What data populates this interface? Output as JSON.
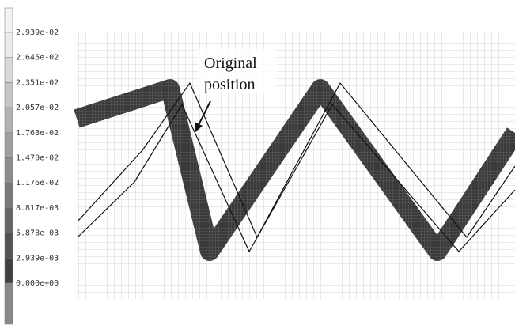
{
  "legend": {
    "labels": [
      "2.939e-02",
      "2.645e-02",
      "2.351e-02",
      "2.057e-02",
      "1.763e-02",
      "1.470e-02",
      "1.176e-02",
      "8.817e-03",
      "5.878e-03",
      "2.939e-03",
      "0.000e+00"
    ]
  },
  "annotation": {
    "lines": [
      "Original",
      "position"
    ]
  }
}
